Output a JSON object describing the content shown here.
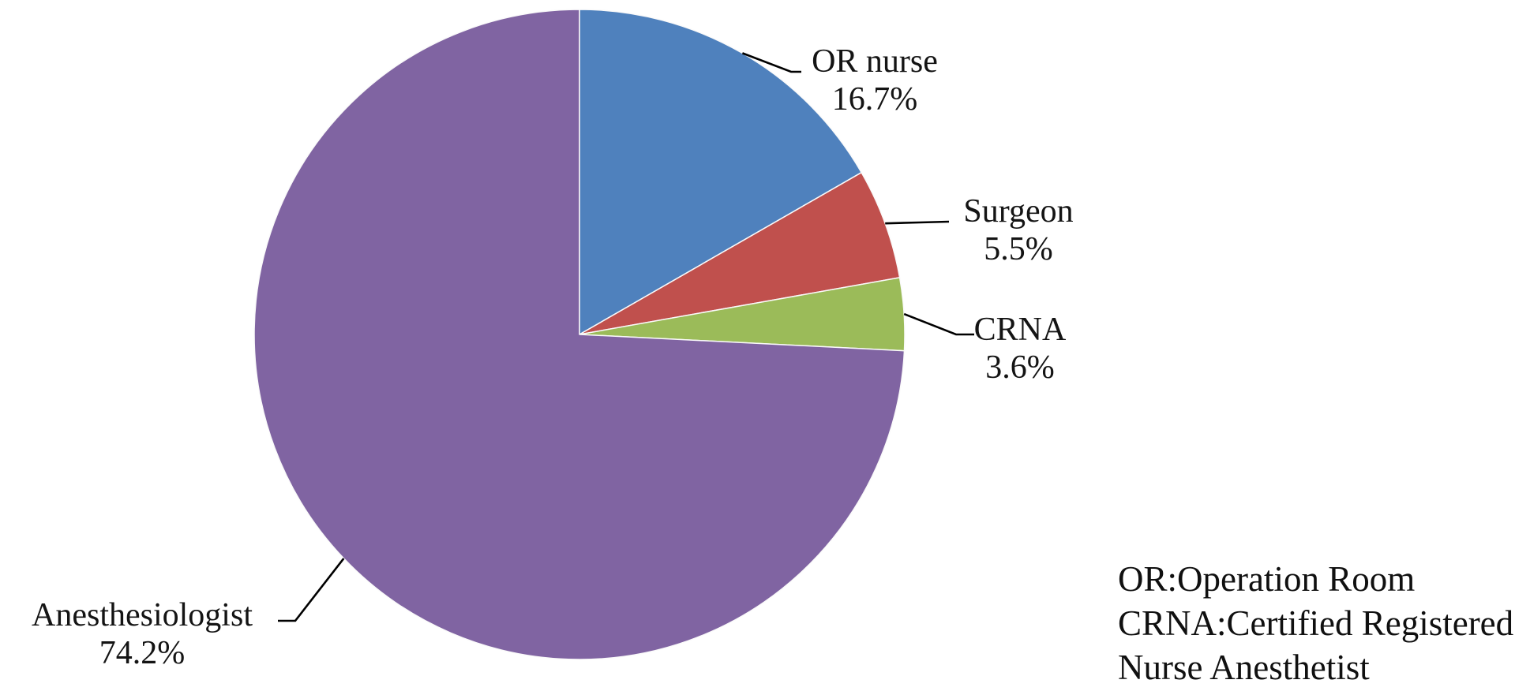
{
  "chart_data": {
    "type": "pie",
    "title": "",
    "categories": [
      "OR nurse",
      "Surgeon",
      "CRNA",
      "Anesthesiologist"
    ],
    "values": [
      16.7,
      5.5,
      3.6,
      74.2
    ],
    "unit": "%",
    "start_angle_deg_from_top": 0,
    "direction": "clockwise",
    "legend_position": "none",
    "slices": [
      {
        "label": "OR nurse",
        "value": 16.7,
        "pct_label": "16.7%",
        "color": "#4F81BD"
      },
      {
        "label": "Surgeon",
        "value": 5.5,
        "pct_label": "5.5%",
        "color": "#C0504D"
      },
      {
        "label": "CRNA",
        "value": 3.6,
        "pct_label": "3.6%",
        "color": "#9BBB59"
      },
      {
        "label": "Anesthesiologist",
        "value": 74.2,
        "pct_label": "74.2%",
        "color": "#8064A2"
      }
    ],
    "annotation": {
      "lines": [
        "OR:Operation Room",
        "CRNA:Certified Registered",
        "Nurse Anesthetist"
      ]
    },
    "leader_line_color": "#000000",
    "slice_border_color": "#FAFAFA"
  }
}
